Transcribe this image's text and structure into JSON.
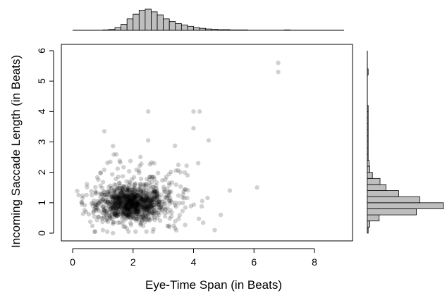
{
  "chart_data": {
    "type": "scatter",
    "xlabel": "Eye-Time Span (in Beats)",
    "ylabel": "Incoming Saccade Length  (in Beats)",
    "xlim": [
      0,
      9
    ],
    "ylim": [
      0,
      6
    ],
    "x_ticks": [
      0,
      2,
      4,
      6,
      8
    ],
    "y_ticks": [
      0,
      1,
      2,
      3,
      4,
      5,
      6
    ],
    "x_tick_labels": [
      "0",
      "2",
      "4",
      "6",
      "8"
    ],
    "y_tick_labels": [
      "0",
      "1",
      "2",
      "3",
      "4",
      "5",
      "6"
    ],
    "grid": false,
    "point_color": "#000000",
    "point_opacity": 0.18,
    "bar_fill": "#bebebe",
    "notable_points": [
      {
        "x": 6.8,
        "y": 5.6
      },
      {
        "x": 6.8,
        "y": 5.3
      },
      {
        "x": 2.5,
        "y": 4.0
      },
      {
        "x": 4.0,
        "y": 4.0
      },
      {
        "x": 4.2,
        "y": 4.0
      },
      {
        "x": 4.0,
        "y": 3.45
      },
      {
        "x": 1.05,
        "y": 3.35
      },
      {
        "x": 2.5,
        "y": 3.05
      },
      {
        "x": 4.5,
        "y": 3.05
      },
      {
        "x": 6.1,
        "y": 1.5
      },
      {
        "x": 0.2,
        "y": 1.25
      },
      {
        "x": 5.2,
        "y": 1.4
      },
      {
        "x": 4.9,
        "y": 0.6
      },
      {
        "x": 4.7,
        "y": 0.1
      },
      {
        "x": 1.0,
        "y": 0.1
      },
      {
        "x": 3.2,
        "y": 0.2
      }
    ],
    "cluster": {
      "center_x": 1.9,
      "center_y": 0.95,
      "spread_x": 0.55,
      "spread_y": 0.28,
      "count": 900
    },
    "halo": {
      "center_x": 2.3,
      "center_y": 1.3,
      "spread_x": 0.9,
      "spread_y": 0.6,
      "count": 260
    },
    "top_histogram": {
      "bin_width": 0.2,
      "x_start": 0.0,
      "counts": [
        0,
        0,
        0,
        0,
        0,
        1,
        3,
        8,
        18,
        34,
        48,
        60,
        63,
        55,
        46,
        34,
        26,
        20,
        16,
        12,
        8,
        6,
        4,
        3,
        2,
        2,
        1,
        1,
        1,
        0,
        0,
        0,
        0,
        0,
        0,
        1,
        0,
        0,
        0,
        0,
        0,
        0,
        0,
        0,
        0
      ]
    },
    "right_histogram": {
      "bin_width": 0.2,
      "y_start": 0.0,
      "counts": [
        1,
        3,
        14,
        58,
        90,
        62,
        37,
        22,
        15,
        6,
        3,
        2,
        1,
        1,
        1,
        1,
        1,
        1,
        1,
        1,
        1,
        0,
        0,
        0,
        0,
        0,
        1,
        0,
        0,
        0
      ]
    }
  }
}
